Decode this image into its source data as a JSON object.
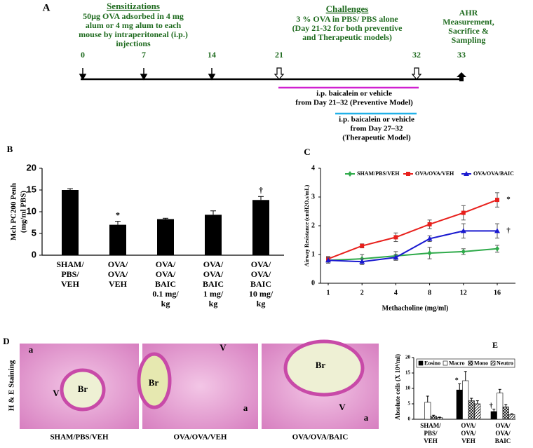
{
  "timeline": {
    "panel_label": "A",
    "sensitization_title": "Sensitizations",
    "sensitization_text": [
      "50µg OVA adsorbed in 4 mg",
      "alum or 4 mg alum to each",
      "mouse by intraperitoneal (i.p.)",
      "injections"
    ],
    "challenge_title": "Challenges",
    "challenge_text": [
      "3 % OVA in PBS/ PBS alone",
      "(Day 21-32 for both preventive",
      "and Therapeutic models)"
    ],
    "ahr_text": [
      "AHR",
      "Measurement,",
      "Sacrifice &",
      "Sampling"
    ],
    "days": [
      "0",
      "7",
      "14",
      "21",
      "32",
      "33"
    ],
    "preventive_text": [
      "i.p. baicalein or vehicle",
      "from Day 21–32 (Preventive Model)"
    ],
    "therapeutic_text": [
      "i.p. baicalein or vehicle",
      "from Day 27–32",
      "(Therapeutic Model)"
    ]
  },
  "chart_data": [
    {
      "type": "bar",
      "panel_label": "B",
      "ylabel": [
        "Mch PC200 Penh",
        "(mg/ml PBS)"
      ],
      "categories": [
        [
          "SHAM/",
          "PBS/",
          "VEH"
        ],
        [
          "OVA/",
          "OVA/",
          "VEH"
        ],
        [
          "OVA/",
          "OVA/",
          "BAIC",
          "0.1 mg/",
          "kg"
        ],
        [
          "OVA/",
          "OVA/",
          "BAIC",
          "1 mg/",
          "kg"
        ],
        [
          "OVA/",
          "OVA/",
          "BAIC",
          "10 mg/",
          "kg"
        ]
      ],
      "values": [
        15,
        7,
        8.3,
        9.3,
        12.7
      ],
      "errors": [
        0.3,
        0.8,
        0.2,
        0.9,
        0.8
      ],
      "value_annotations": [
        null,
        "*",
        null,
        null,
        "†"
      ],
      "color": "#000000",
      "ylim": [
        0,
        20
      ],
      "yticks": [
        0,
        5,
        10,
        15,
        20
      ]
    },
    {
      "type": "line",
      "panel_label": "C",
      "xlabel": "Methacholine (mg/ml)",
      "ylabel": "Airway Resistance (cmH2O.s/mL)",
      "categories": [
        "1",
        "2",
        "4",
        "8",
        "12",
        "16"
      ],
      "series": [
        {
          "name": "SHAM/PBS/VEH",
          "color": "#2eaa4a",
          "marker": "diamond",
          "values": [
            0.8,
            0.85,
            0.95,
            1.05,
            1.1,
            1.2
          ],
          "errors": [
            0.1,
            0.15,
            0.15,
            0.2,
            0.1,
            0.12
          ],
          "annotation": null
        },
        {
          "name": "OVA/OVA/VEH",
          "color": "#e8201c",
          "marker": "square",
          "values": [
            0.85,
            1.3,
            1.6,
            2.05,
            2.45,
            2.9
          ],
          "errors": [
            0.08,
            0.07,
            0.15,
            0.15,
            0.25,
            0.25
          ],
          "annotation": "*"
        },
        {
          "name": "OVA/OVA/BAIC",
          "color": "#1a1ad0",
          "marker": "triangle",
          "values": [
            0.8,
            0.75,
            0.9,
            1.55,
            1.82,
            1.82
          ],
          "errors": [
            0.1,
            0.1,
            0.1,
            0.1,
            0.25,
            0.25
          ],
          "annotation": "†"
        }
      ],
      "ylim": [
        0,
        4
      ],
      "yticks": [
        0,
        1,
        2,
        3,
        4
      ]
    },
    {
      "type": "grouped_bar",
      "panel_label": "E",
      "ylabel": "Absolute cells (X 10⁴/ml)",
      "categories": [
        [
          "SHAM/",
          "PBS/",
          "VEH"
        ],
        [
          "OVA/",
          "OVA/",
          "VEH"
        ],
        [
          "OVA/",
          "OVA/",
          "BAIC"
        ]
      ],
      "series": [
        {
          "name": "Eosino",
          "color": "#000000",
          "pattern": "solid",
          "values": [
            0,
            9.5,
            2.5
          ],
          "errors": [
            0,
            2,
            0.8
          ],
          "annotations": [
            null,
            "*",
            "†"
          ]
        },
        {
          "name": "Macro",
          "color": "#ffffff",
          "pattern": "solid",
          "values": [
            5.5,
            12.5,
            8.5
          ],
          "errors": [
            2,
            3,
            1.2
          ],
          "annotations": [
            null,
            null,
            null
          ]
        },
        {
          "name": "Mono",
          "color": "#000000",
          "pattern": "crosshatch",
          "values": [
            1,
            6,
            4
          ],
          "errors": [
            0.3,
            0.8,
            0.8
          ],
          "annotations": [
            null,
            null,
            null
          ]
        },
        {
          "name": "Neutro",
          "color": "#000000",
          "pattern": "diagonal",
          "values": [
            0.5,
            5,
            1.5
          ],
          "errors": [
            0.2,
            1,
            0.3
          ],
          "annotations": [
            null,
            null,
            null
          ]
        }
      ],
      "ylim": [
        0,
        20
      ],
      "yticks": [
        0,
        5,
        10,
        15,
        20
      ]
    }
  ],
  "histology": {
    "panel_label": "D",
    "stain_label": "H & E Staining",
    "panels": [
      {
        "caption": "SHAM/PBS/VEH",
        "labels": [
          "a",
          "V",
          "Br"
        ]
      },
      {
        "caption": "OVA/OVA/VEH",
        "labels": [
          "V",
          "Br",
          "a"
        ]
      },
      {
        "caption": "OVA/OVA/BAIC",
        "labels": [
          "Br",
          "V",
          "a"
        ]
      }
    ]
  }
}
